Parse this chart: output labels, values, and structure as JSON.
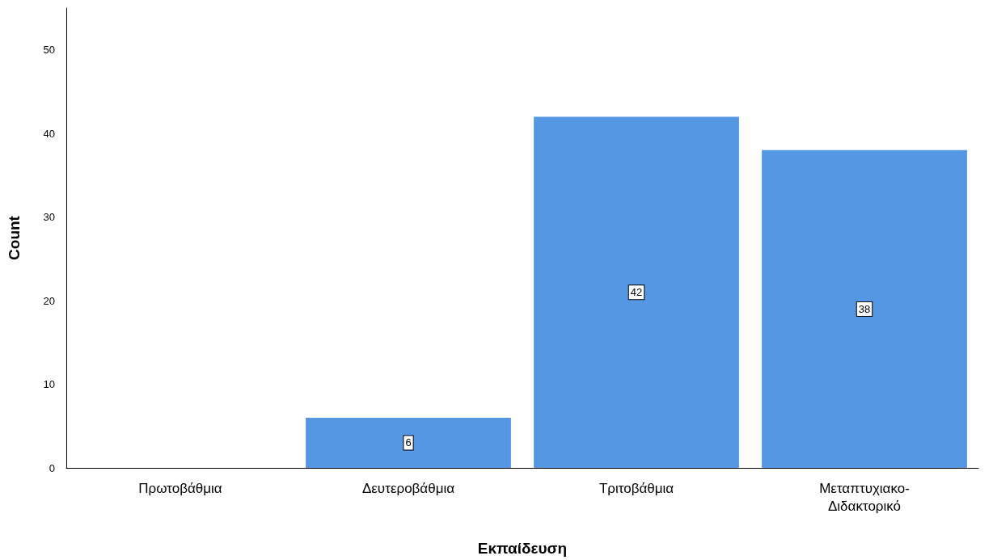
{
  "chart_data": {
    "type": "bar",
    "xlabel": "Εκπαίδευση",
    "ylabel": "Count",
    "categories": [
      "Πρωτοβάθμια",
      "Δευτεροβάθμια",
      "Τριτοβάθμια",
      "Μεταπτυχιακο-Διδακτορικό"
    ],
    "values": [
      0,
      6,
      42,
      38
    ],
    "value_labels": [
      null,
      "6",
      "42",
      "38"
    ],
    "color": "#5597e3",
    "ylim": [
      0,
      55
    ],
    "yticks": [
      0,
      10,
      20,
      30,
      40,
      50
    ],
    "grid": false
  }
}
